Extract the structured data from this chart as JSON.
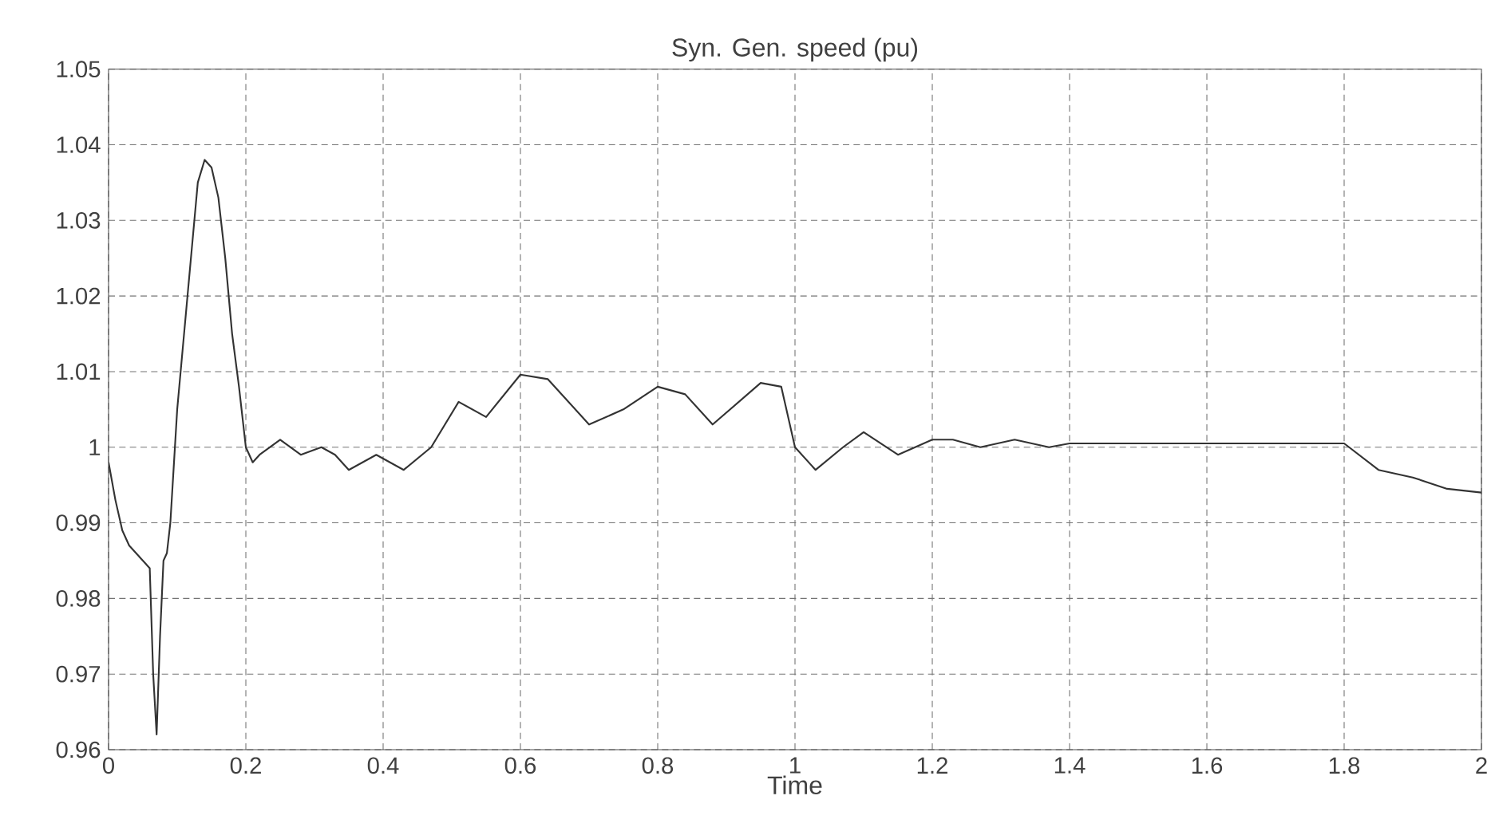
{
  "chart_data": {
    "type": "line",
    "title": "Syn. Gen. speed (pu)",
    "xlabel": "Time",
    "x": [
      0,
      0.01,
      0.02,
      0.03,
      0.05,
      0.06,
      0.065,
      0.07,
      0.075,
      0.08,
      0.085,
      0.09,
      0.1,
      0.115,
      0.13,
      0.14,
      0.15,
      0.16,
      0.17,
      0.18,
      0.19,
      0.2,
      0.21,
      0.22,
      0.25,
      0.28,
      0.31,
      0.33,
      0.35,
      0.39,
      0.43,
      0.47,
      0.51,
      0.55,
      0.6,
      0.64,
      0.7,
      0.75,
      0.8,
      0.84,
      0.88,
      0.95,
      0.98,
      1.0,
      1.03,
      1.07,
      1.1,
      1.15,
      1.2,
      1.23,
      1.27,
      1.32,
      1.37,
      1.4,
      1.5,
      1.6,
      1.7,
      1.8,
      1.85,
      1.9,
      1.95,
      2.0
    ],
    "series": [
      {
        "color": "#333333",
        "values": [
          0.998,
          0.993,
          0.989,
          0.987,
          0.985,
          0.984,
          0.97,
          0.962,
          0.975,
          0.985,
          0.986,
          0.99,
          1.005,
          1.02,
          1.035,
          1.038,
          1.037,
          1.033,
          1.025,
          1.015,
          1.008,
          1.0,
          0.998,
          0.999,
          1.001,
          0.999,
          1.0,
          0.999,
          0.997,
          0.999,
          0.997,
          1.0,
          1.006,
          1.004,
          1.0096,
          1.009,
          1.003,
          1.005,
          1.008,
          1.007,
          1.003,
          1.0085,
          1.008,
          1.0,
          0.997,
          1.0,
          1.002,
          0.999,
          1.001,
          1.001,
          1.0,
          1.001,
          1.0,
          1.0005,
          1.0005,
          1.0005,
          1.0005,
          1.0005,
          0.997,
          0.996,
          0.9945,
          0.994
        ]
      }
    ],
    "xlim": [
      0,
      2
    ],
    "ylim": [
      0.96,
      1.05
    ],
    "xticks": [
      0,
      0.2,
      0.4,
      0.6,
      0.8,
      1,
      1.2,
      1.4,
      1.6,
      1.8,
      2
    ],
    "yticks": [
      0.96,
      0.97,
      0.98,
      0.99,
      1,
      1.01,
      1.02,
      1.03,
      1.04,
      1.05
    ],
    "grid": true,
    "line_style": "solid",
    "marker": "none"
  }
}
